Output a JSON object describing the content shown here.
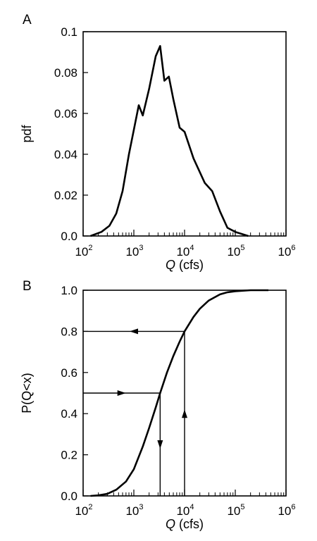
{
  "figure": {
    "panel_labels": [
      "A",
      "B"
    ]
  },
  "chart_data": [
    {
      "panel": "A",
      "type": "line",
      "title": "",
      "xlabel": {
        "var": "Q",
        "unit": " (cfs)"
      },
      "ylabel": "pdf",
      "x_scale": "log",
      "xlim": [
        100,
        1000000
      ],
      "ylim": [
        0,
        0.1
      ],
      "grid": false,
      "xticks": [
        {
          "base": "10",
          "exp": "2",
          "value": 100
        },
        {
          "base": "10",
          "exp": "3",
          "value": 1000
        },
        {
          "base": "10",
          "exp": "4",
          "value": 10000
        },
        {
          "base": "10",
          "exp": "5",
          "value": 100000
        },
        {
          "base": "10",
          "exp": "6",
          "value": 1000000
        }
      ],
      "yticks": [
        {
          "label": "0.0",
          "value": 0
        },
        {
          "label": "0.02",
          "value": 0.02
        },
        {
          "label": "0.04",
          "value": 0.04
        },
        {
          "label": "0.06",
          "value": 0.06
        },
        {
          "label": "0.08",
          "value": 0.08
        },
        {
          "label": "0.1",
          "value": 0.1
        }
      ],
      "series": [
        {
          "x": [
            140,
            230,
            330,
            450,
            600,
            800,
            1000,
            1250,
            1500,
            2000,
            2700,
            3300,
            4000,
            4900,
            6000,
            8000,
            10000,
            15000,
            25000,
            35000,
            50000,
            70000,
            100000,
            180000
          ],
          "y": [
            0.0,
            0.002,
            0.005,
            0.011,
            0.022,
            0.04,
            0.052,
            0.064,
            0.059,
            0.072,
            0.088,
            0.093,
            0.076,
            0.078,
            0.067,
            0.053,
            0.051,
            0.038,
            0.026,
            0.022,
            0.012,
            0.004,
            0.002,
            0.0
          ]
        }
      ]
    },
    {
      "panel": "B",
      "type": "line",
      "title": "",
      "xlabel": {
        "var": "Q",
        "unit": " (cfs)"
      },
      "ylabel": "P(Q<x)",
      "x_scale": "log",
      "xlim": [
        100,
        1000000
      ],
      "ylim": [
        0,
        1
      ],
      "grid": false,
      "xticks": [
        {
          "base": "10",
          "exp": "2",
          "value": 100
        },
        {
          "base": "10",
          "exp": "3",
          "value": 1000
        },
        {
          "base": "10",
          "exp": "4",
          "value": 10000
        },
        {
          "base": "10",
          "exp": "5",
          "value": 100000
        },
        {
          "base": "10",
          "exp": "6",
          "value": 1000000
        }
      ],
      "yticks": [
        {
          "label": "0.0",
          "value": 0
        },
        {
          "label": "0.2",
          "value": 0.2
        },
        {
          "label": "0.4",
          "value": 0.4
        },
        {
          "label": "0.6",
          "value": 0.6
        },
        {
          "label": "0.8",
          "value": 0.8
        },
        {
          "label": "1.0",
          "value": 1
        }
      ],
      "series": [
        {
          "x": [
            140,
            200,
            300,
            450,
            700,
            1000,
            1500,
            2000,
            2700,
            3300,
            4500,
            6000,
            8000,
            10000,
            15000,
            20000,
            30000,
            50000,
            70000,
            100000,
            150000,
            200000,
            300000,
            450000
          ],
          "y": [
            0.0,
            0.003,
            0.01,
            0.03,
            0.07,
            0.13,
            0.24,
            0.33,
            0.43,
            0.5,
            0.6,
            0.68,
            0.75,
            0.8,
            0.87,
            0.91,
            0.95,
            0.98,
            0.99,
            0.995,
            0.998,
            1.0,
            1.0,
            1.0
          ]
        }
      ],
      "annotations": [
        {
          "kind": "arrow-right",
          "from": [
            100,
            0.5
          ],
          "to": [
            3300,
            0.5
          ]
        },
        {
          "kind": "arrow-down",
          "from": [
            3300,
            0.5
          ],
          "to": [
            3300,
            0
          ]
        },
        {
          "kind": "arrow-up",
          "from": [
            10000,
            0
          ],
          "to": [
            10000,
            0.8
          ]
        },
        {
          "kind": "arrow-left",
          "from": [
            10000,
            0.8
          ],
          "to": [
            100,
            0.8
          ]
        }
      ]
    }
  ]
}
